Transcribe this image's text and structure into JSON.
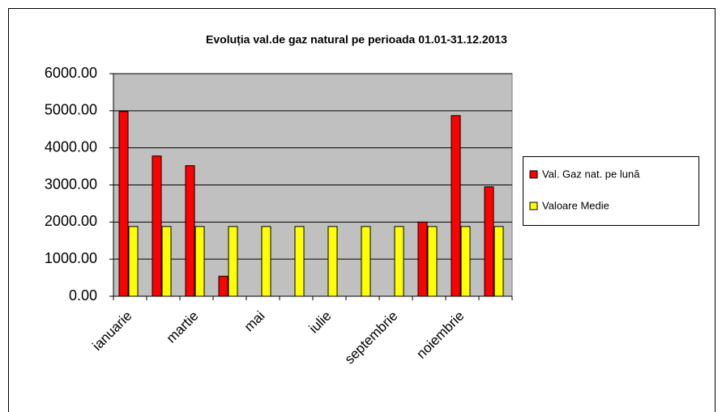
{
  "chart_data": {
    "type": "bar",
    "title": "Evoluția val.de gaz natural pe perioada 01.01-31.12.2013",
    "categories": [
      "ianuarie",
      null,
      "martie",
      null,
      "mai",
      null,
      "iulie",
      null,
      "septembrie",
      null,
      "noiembrie",
      null
    ],
    "series": [
      {
        "name": "Val. Gaz nat. pe lună",
        "color": "#ff0000",
        "values": [
          4980,
          3780,
          3520,
          540,
          0,
          0,
          0,
          0,
          0,
          2000,
          4870,
          2950
        ]
      },
      {
        "name": "Valoare Medie",
        "color": "#ffff00",
        "values": [
          1880,
          1880,
          1880,
          1880,
          1880,
          1880,
          1880,
          1880,
          1880,
          1880,
          1880,
          1880
        ]
      }
    ],
    "ylim": [
      0,
      6000
    ],
    "yticks": [
      {
        "value": 0,
        "label": "0.00"
      },
      {
        "value": 1000,
        "label": "1000.00"
      },
      {
        "value": 2000,
        "label": "2000.00"
      },
      {
        "value": 3000,
        "label": "3000.00"
      },
      {
        "value": 4000,
        "label": "4000.00"
      },
      {
        "value": 5000,
        "label": "5000.00"
      },
      {
        "value": 6000,
        "label": "6000.00"
      }
    ],
    "grid": true,
    "legend": "right"
  }
}
